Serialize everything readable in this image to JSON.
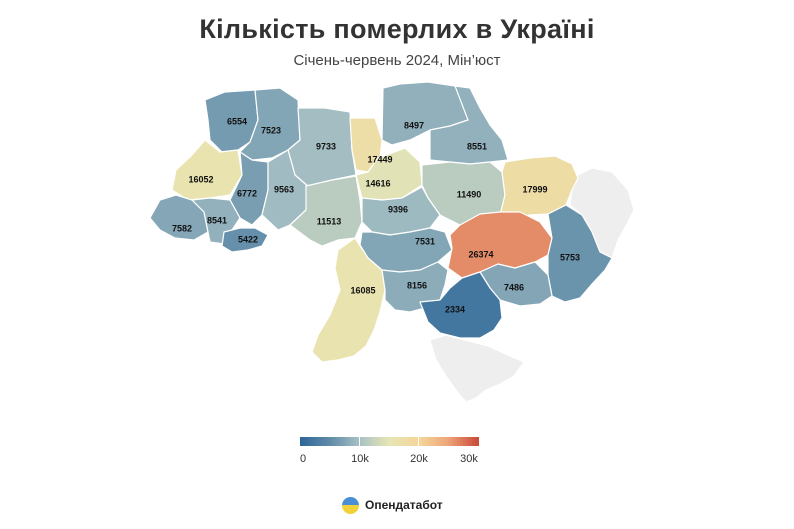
{
  "header": {
    "title": "Кількість померлих в Україні",
    "subtitle": "Січень-червень 2024, Мін’юст"
  },
  "map": {
    "regions": [
      {
        "id": "volyn",
        "value": 6554,
        "label": "6554"
      },
      {
        "id": "rivne",
        "value": 7523,
        "label": "7523"
      },
      {
        "id": "zhytomyr",
        "value": 9733,
        "label": "9733"
      },
      {
        "id": "kyiv-oblast",
        "value": 14616,
        "label": "14616"
      },
      {
        "id": "kyiv-city",
        "value": 17449,
        "label": "17449"
      },
      {
        "id": "chernihiv",
        "value": 8497,
        "label": "8497"
      },
      {
        "id": "sumy",
        "value": 8551,
        "label": "8551"
      },
      {
        "id": "lviv",
        "value": 16052,
        "label": "16052"
      },
      {
        "id": "ternopil",
        "value": 6772,
        "label": "6772"
      },
      {
        "id": "khmelnytskyi",
        "value": 9563,
        "label": "9563"
      },
      {
        "id": "poltava",
        "value": 11490,
        "label": "11490"
      },
      {
        "id": "kharkiv",
        "value": 17999,
        "label": "17999"
      },
      {
        "id": "zakarpattia",
        "value": 7582,
        "label": "7582"
      },
      {
        "id": "ivano-frankivsk",
        "value": 8541,
        "label": "8541"
      },
      {
        "id": "chernivtsi",
        "value": 5422,
        "label": "5422"
      },
      {
        "id": "vinnytsia",
        "value": 11513,
        "label": "11513"
      },
      {
        "id": "cherkasy",
        "value": 9396,
        "label": "9396"
      },
      {
        "id": "kirovohrad",
        "value": 7531,
        "label": "7531"
      },
      {
        "id": "dnipro",
        "value": 26374,
        "label": "26374"
      },
      {
        "id": "donetsk",
        "value": 5753,
        "label": "5753"
      },
      {
        "id": "odesa",
        "value": 16085,
        "label": "16085"
      },
      {
        "id": "mykolaiv",
        "value": 8156,
        "label": "8156"
      },
      {
        "id": "zaporizhzhia",
        "value": 7486,
        "label": "7486"
      },
      {
        "id": "kherson",
        "value": 2334,
        "label": "2334"
      },
      {
        "id": "luhansk",
        "value": null,
        "label": ""
      },
      {
        "id": "crimea",
        "value": null,
        "label": ""
      }
    ]
  },
  "legend": {
    "min": 0,
    "max": 30000,
    "colors": [
      "#2d6598",
      "#5f8ba8",
      "#a7c0c4",
      "#e6e6b5",
      "#f4d69a",
      "#eea579",
      "#c94a3a"
    ],
    "labels": [
      "0",
      "10k",
      "20k",
      "30k"
    ],
    "no_data_color": "#eeeeee"
  },
  "brand": {
    "name": "Опендатабот"
  }
}
